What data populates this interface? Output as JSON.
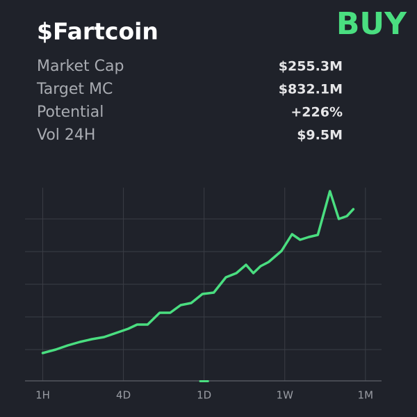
{
  "header": {
    "title": "$Fartcoin",
    "action": "BUY"
  },
  "stats": [
    {
      "label": "Market Cap",
      "value": "$255.3M"
    },
    {
      "label": "Target MC",
      "value": "$832.1M"
    },
    {
      "label": "Potential",
      "value": "+226%"
    },
    {
      "label": "Vol 24H",
      "value": "$9.5M"
    }
  ],
  "chart_data": {
    "type": "line",
    "x": [
      0,
      0.16,
      0.31,
      0.46,
      0.61,
      0.76,
      0.91,
      1.06,
      1.17,
      1.3,
      1.45,
      1.58,
      1.71,
      1.84,
      1.98,
      2.12,
      2.27,
      2.4,
      2.52,
      2.61,
      2.7,
      2.8,
      2.96,
      3.09,
      3.19,
      3.3,
      3.41,
      3.56,
      3.67,
      3.77,
      3.85
    ],
    "values": [
      40,
      45,
      51,
      56,
      60,
      63,
      69,
      75,
      81,
      81,
      98,
      98,
      109,
      112,
      125,
      127,
      149,
      155,
      167,
      155,
      165,
      171,
      187,
      211,
      203,
      207,
      210,
      273,
      233,
      237,
      247
    ],
    "color": "#4ade80",
    "xlim": [
      -0.22,
      4.2
    ],
    "ylim": [
      0,
      278
    ],
    "xticks": [
      {
        "value": 0,
        "label": "1H"
      },
      {
        "value": 1,
        "label": "4D"
      },
      {
        "value": 2,
        "label": "1D"
      },
      {
        "value": 3,
        "label": "1W"
      },
      {
        "value": 4,
        "label": "1M"
      }
    ],
    "grid": true
  }
}
